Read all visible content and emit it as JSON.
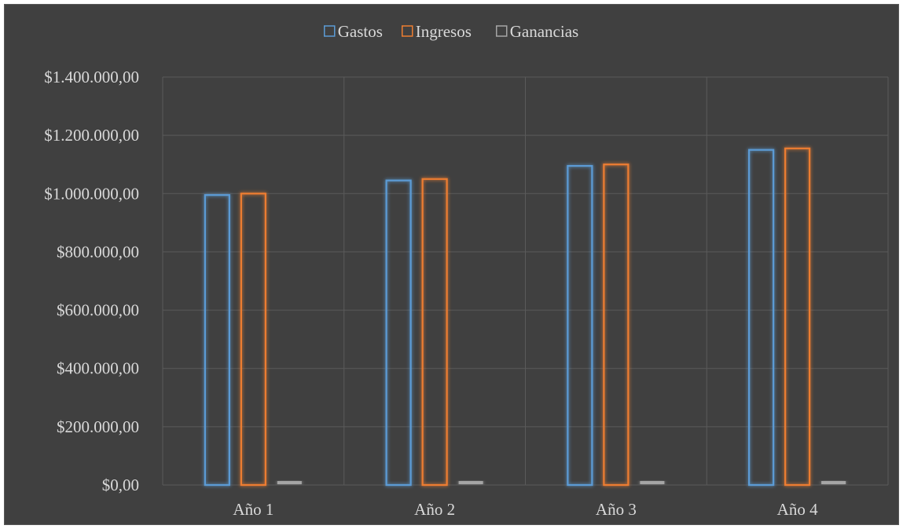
{
  "chart_data": {
    "type": "bar",
    "categories": [
      "Año 1",
      "Año 2",
      "Año 3",
      "Año 4"
    ],
    "series": [
      {
        "name": "Gastos",
        "values": [
          995000,
          1045000,
          1095000,
          1150000
        ],
        "color": "#5b9bd5"
      },
      {
        "name": "Ingresos",
        "values": [
          1000000,
          1050000,
          1100000,
          1155000
        ],
        "color": "#ed7d31"
      },
      {
        "name": "Ganancias",
        "values": [
          5000,
          5000,
          5000,
          5000
        ],
        "color": "#a5a5a5"
      }
    ],
    "ylim": [
      0,
      1400000
    ],
    "yticks": [
      0,
      200000,
      400000,
      600000,
      800000,
      1000000,
      1200000,
      1400000
    ],
    "ytick_labels": [
      "$0,00",
      "$200.000,00",
      "$400.000,00",
      "$600.000,00",
      "$800.000,00",
      "$1.000.000,00",
      "$1.200.000,00",
      "$1.400.000,00"
    ],
    "legend_position": "top",
    "grid": true,
    "background": "#404040",
    "bar_style": "outlined-glow"
  }
}
